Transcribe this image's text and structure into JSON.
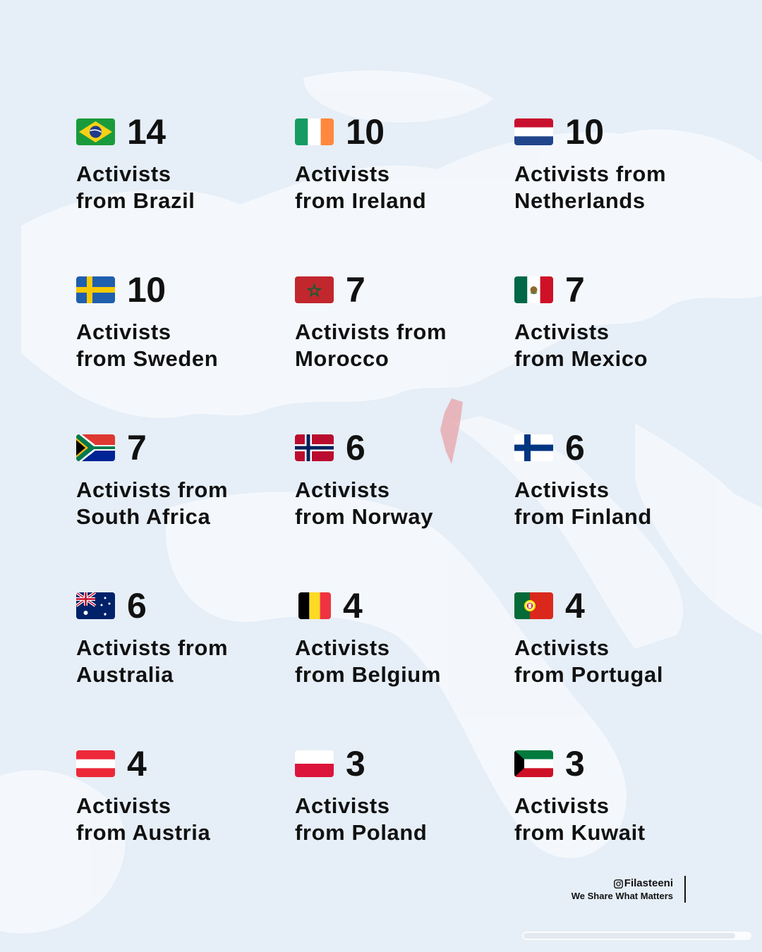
{
  "items": [
    {
      "flag_icon": "brazil-flag-icon",
      "count": "14",
      "label": "Activists\nfrom Brazil"
    },
    {
      "flag_icon": "ireland-flag-icon",
      "count": "10",
      "label": "Activists\nfrom Ireland"
    },
    {
      "flag_icon": "netherlands-flag-icon",
      "count": "10",
      "label": "Activists from\nNetherlands"
    },
    {
      "flag_icon": "sweden-flag-icon",
      "count": "10",
      "label": "Activists\nfrom Sweden"
    },
    {
      "flag_icon": "morocco-flag-icon",
      "count": "7",
      "label": "Activists from\nMorocco"
    },
    {
      "flag_icon": "mexico-flag-icon",
      "count": "7",
      "label": "Activists\nfrom Mexico"
    },
    {
      "flag_icon": "south-africa-flag-icon",
      "count": "7",
      "label": "Activists from\nSouth Africa"
    },
    {
      "flag_icon": "norway-flag-icon",
      "count": "6",
      "label": "Activists\nfrom Norway"
    },
    {
      "flag_icon": "finland-flag-icon",
      "count": "6",
      "label": "Activists\nfrom Finland"
    },
    {
      "flag_icon": "australia-flag-icon",
      "count": "6",
      "label": "Activists from\nAustralia"
    },
    {
      "flag_icon": "belgium-flag-icon",
      "count": "4",
      "label": "Activists\nfrom Belgium"
    },
    {
      "flag_icon": "portugal-flag-icon",
      "count": "4",
      "label": "Activists\nfrom Portugal"
    },
    {
      "flag_icon": "austria-flag-icon",
      "count": "4",
      "label": "Activists\nfrom Austria"
    },
    {
      "flag_icon": "poland-flag-icon",
      "count": "3",
      "label": "Activists\nfrom Poland"
    },
    {
      "flag_icon": "kuwait-flag-icon",
      "count": "3",
      "label": "Activists\nfrom Kuwait"
    }
  ],
  "brand": {
    "handle": "Filasteeni",
    "tagline": "We Share What Matters",
    "icon": "instagram-icon"
  },
  "colors": {
    "background": "#e6eef7",
    "map_land": "#f4f8fc",
    "highlight": "#e7a3a8",
    "text": "#111111"
  }
}
